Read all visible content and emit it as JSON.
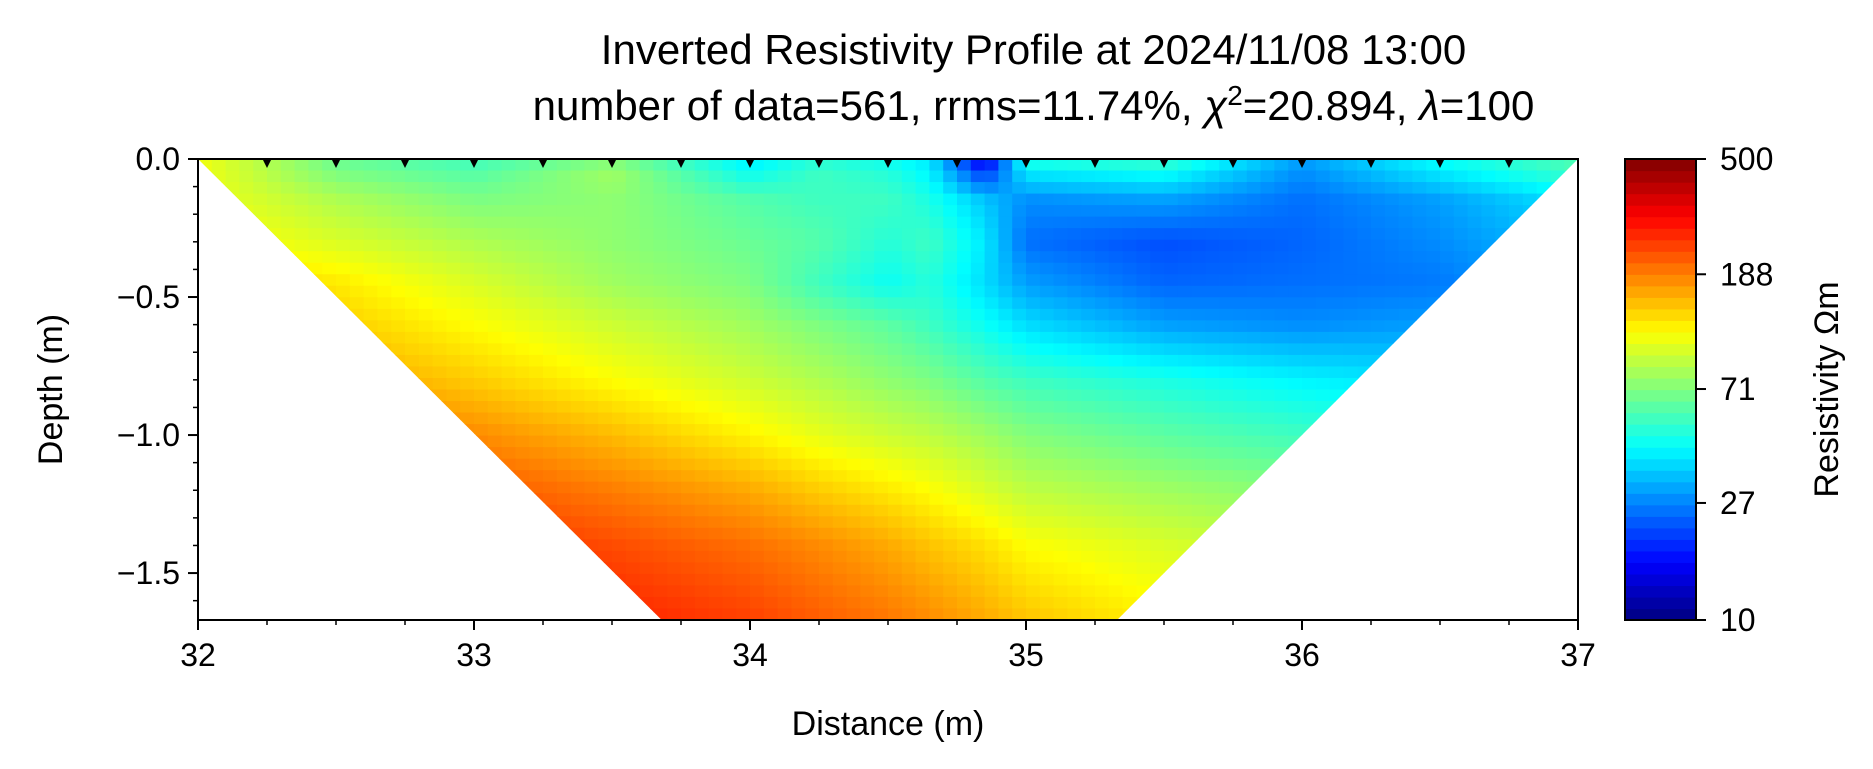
{
  "chart_data": {
    "type": "heatmap",
    "title": "Inverted Resistivity Profile at 2024/11/08 13:00",
    "subtitle": "number of data=561, rrms=11.74%, χ²=20.894, λ=100",
    "subtitle_parts": {
      "prefix": "number of data=561, rrms=11.74%, ",
      "chi_symbol": "χ",
      "chi_exponent": "2",
      "chi_value": "=20.894, ",
      "lambda_symbol": "λ",
      "lambda_value": "=100"
    },
    "xlabel": "Distance (m)",
    "ylabel": "Depth (m)",
    "xlim": [
      32,
      37
    ],
    "ylim": [
      -1.67,
      0
    ],
    "x_ticks": [
      32,
      33,
      34,
      35,
      36,
      37
    ],
    "x_tick_labels": [
      "32",
      "33",
      "34",
      "35",
      "36",
      "37"
    ],
    "y_ticks": [
      0.0,
      -0.5,
      -1.0,
      -1.5
    ],
    "y_tick_labels": [
      "0.0",
      "−0.5",
      "−1.0",
      "−1.5"
    ],
    "electrodes_x": [
      32.25,
      32.5,
      32.75,
      33.0,
      33.25,
      33.5,
      33.75,
      34.0,
      34.25,
      34.5,
      34.75,
      35.0,
      35.25,
      35.5,
      35.75,
      36.0,
      36.25,
      36.5,
      36.75
    ],
    "colorbar": {
      "label": "Resistivity Ωm",
      "scale": "log",
      "colormap": "jet",
      "range": [
        10,
        500
      ],
      "ticks": [
        10,
        27,
        71,
        188,
        500
      ],
      "tick_labels": [
        "10",
        "27",
        "71",
        "188",
        "500"
      ]
    },
    "resistivity_grid": {
      "x": [
        32.0,
        32.5,
        33.0,
        33.5,
        34.0,
        34.25,
        34.5,
        34.65,
        34.85,
        35.0,
        35.5,
        36.0,
        36.5,
        37.0
      ],
      "depth": [
        0.0,
        -0.05,
        -0.15,
        -0.3,
        -0.45,
        -0.6,
        -0.8,
        -1.0,
        -1.2,
        -1.4,
        -1.67
      ],
      "values_ohm_m": [
        [
          110,
          65,
          55,
          70,
          40,
          50,
          45,
          40,
          14,
          50,
          55,
          30,
          45,
          60
        ],
        [
          110,
          70,
          60,
          80,
          45,
          55,
          50,
          42,
          20,
          40,
          45,
          28,
          40,
          55
        ],
        [
          110,
          85,
          70,
          75,
          60,
          55,
          55,
          48,
          35,
          28,
          30,
          25,
          30,
          40
        ],
        [
          120,
          100,
          85,
          75,
          65,
          60,
          50,
          55,
          40,
          25,
          22,
          24,
          28,
          35
        ],
        [
          140,
          125,
          100,
          80,
          70,
          55,
          45,
          50,
          38,
          30,
          24,
          25,
          26,
          32
        ],
        [
          160,
          140,
          115,
          95,
          80,
          70,
          62,
          55,
          45,
          38,
          30,
          28,
          30,
          32
        ],
        [
          180,
          165,
          140,
          115,
          95,
          85,
          75,
          70,
          60,
          55,
          48,
          42,
          38,
          38
        ],
        [
          210,
          200,
          180,
          150,
          120,
          105,
          95,
          90,
          80,
          72,
          62,
          55,
          50,
          48
        ],
        [
          250,
          240,
          220,
          190,
          160,
          140,
          125,
          115,
          100,
          90,
          80,
          72,
          65,
          60
        ],
        [
          290,
          280,
          260,
          230,
          200,
          180,
          160,
          145,
          130,
          115,
          100,
          90,
          80,
          75
        ],
        [
          320,
          310,
          300,
          270,
          240,
          215,
          195,
          180,
          160,
          145,
          120,
          105,
          95,
          90
        ]
      ]
    },
    "colors": {
      "axis": "#000000",
      "marker": "#000000",
      "background": "#ffffff"
    }
  }
}
